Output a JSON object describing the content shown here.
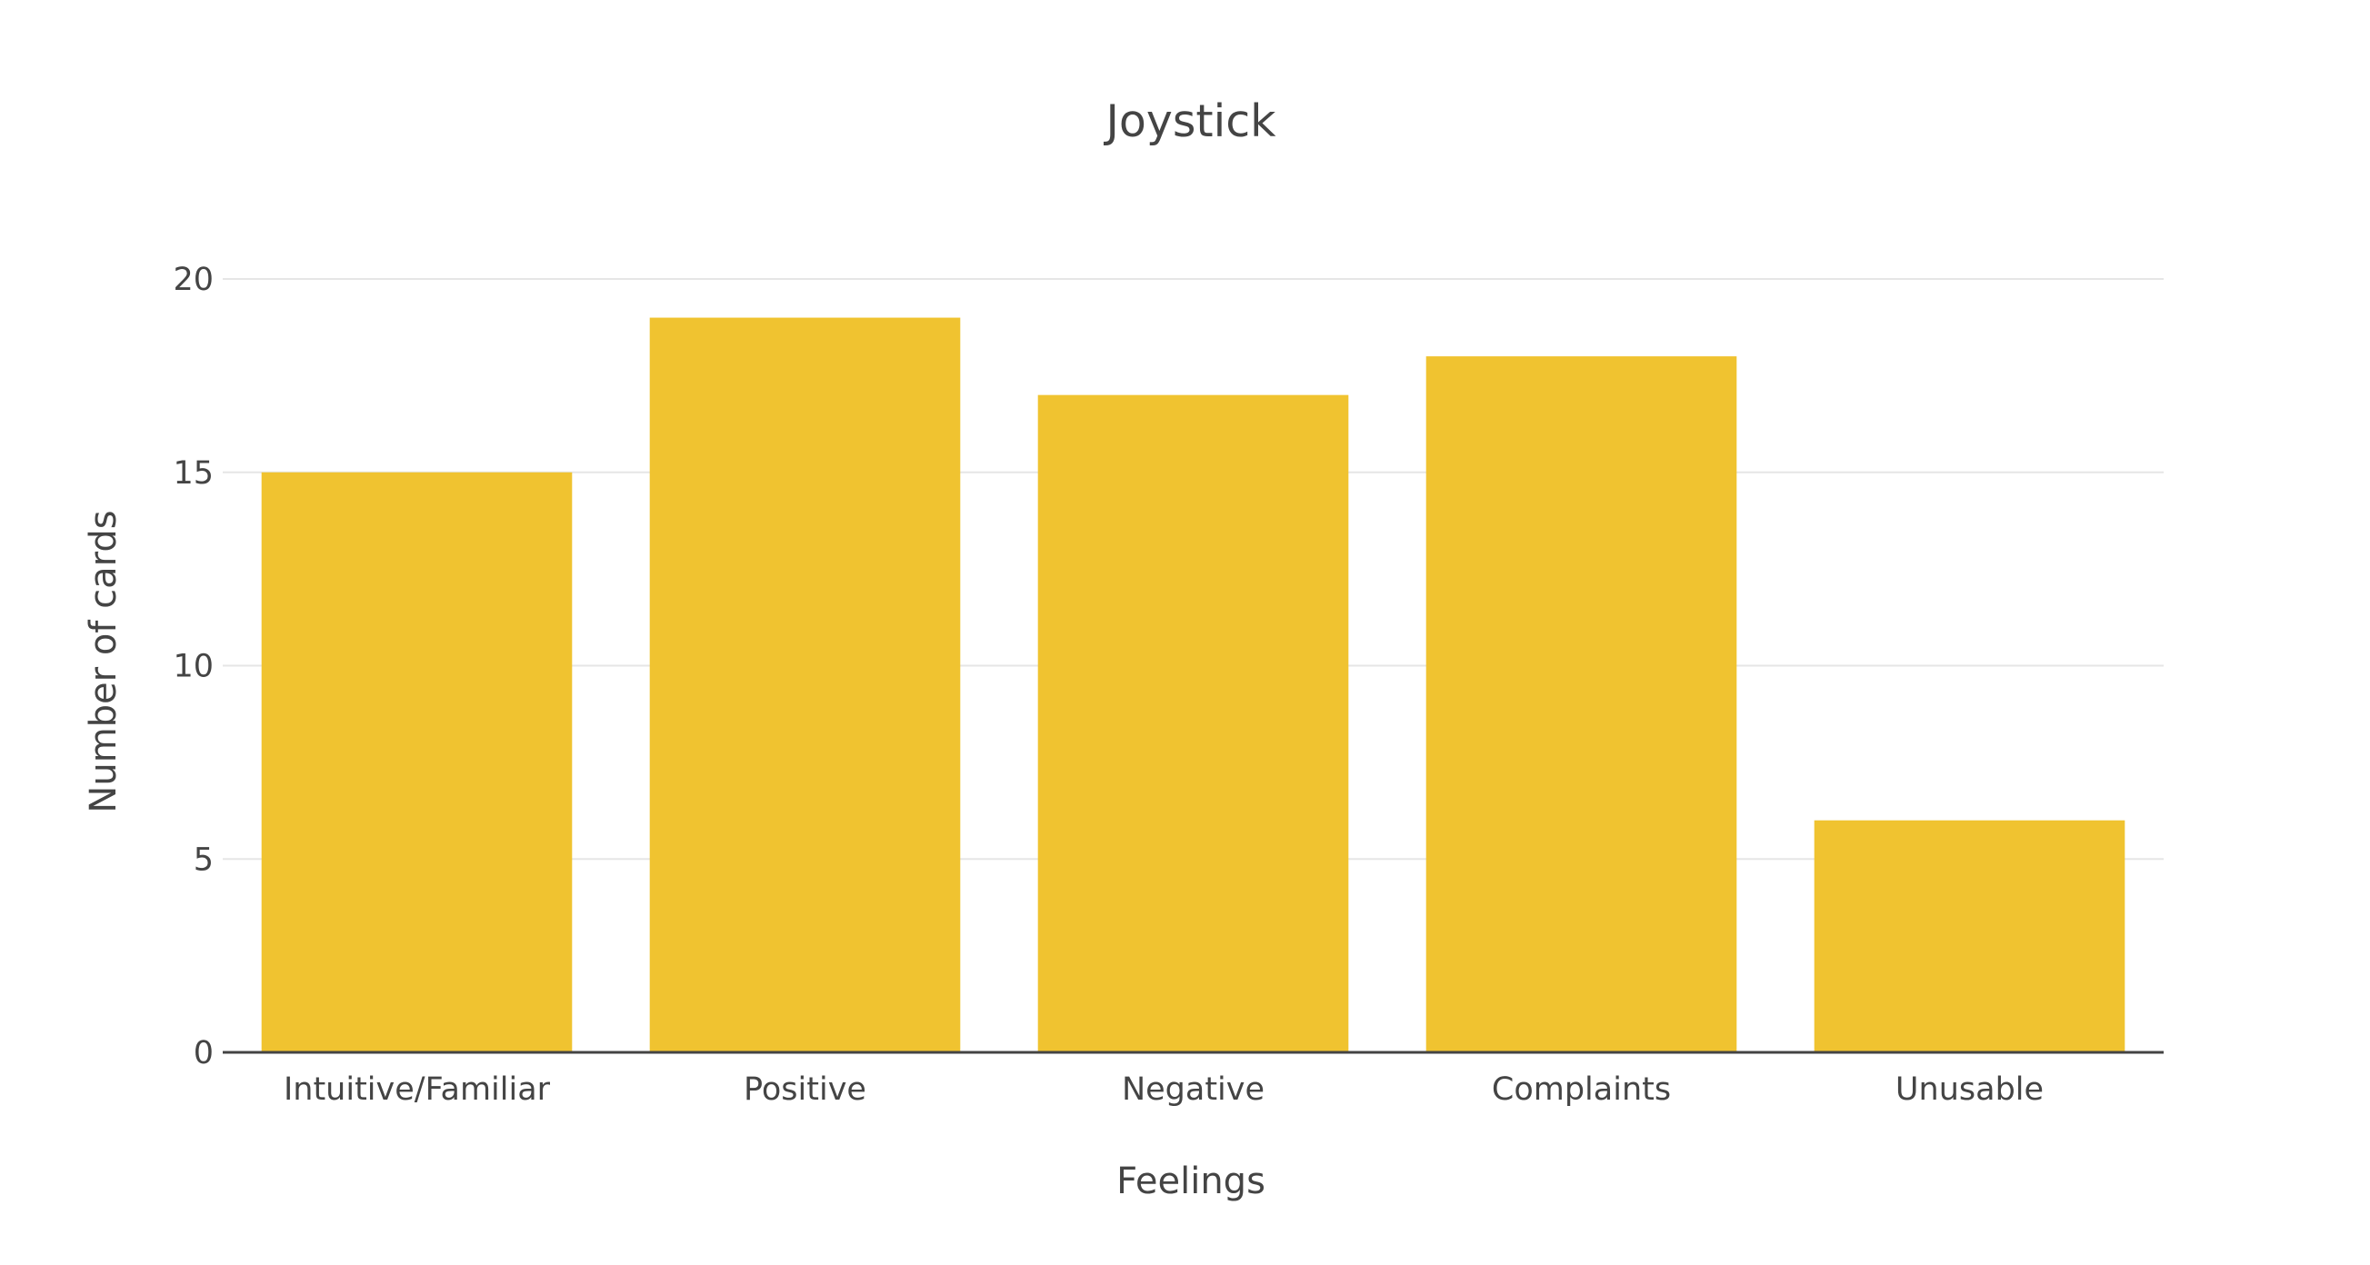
{
  "chart_data": {
    "type": "bar",
    "title": "Joystick",
    "xlabel": "Feelings",
    "ylabel": "Number of cards",
    "categories": [
      "Intuitive/Familiar",
      "Positive",
      "Negative",
      "Complaints",
      "Unusable"
    ],
    "values": [
      15,
      19,
      17,
      18,
      6
    ],
    "ylim": [
      0,
      20
    ],
    "yticks": [
      0,
      5,
      10,
      15,
      20
    ],
    "bar_color": "#f0c330",
    "grid": true,
    "legend": "none"
  }
}
